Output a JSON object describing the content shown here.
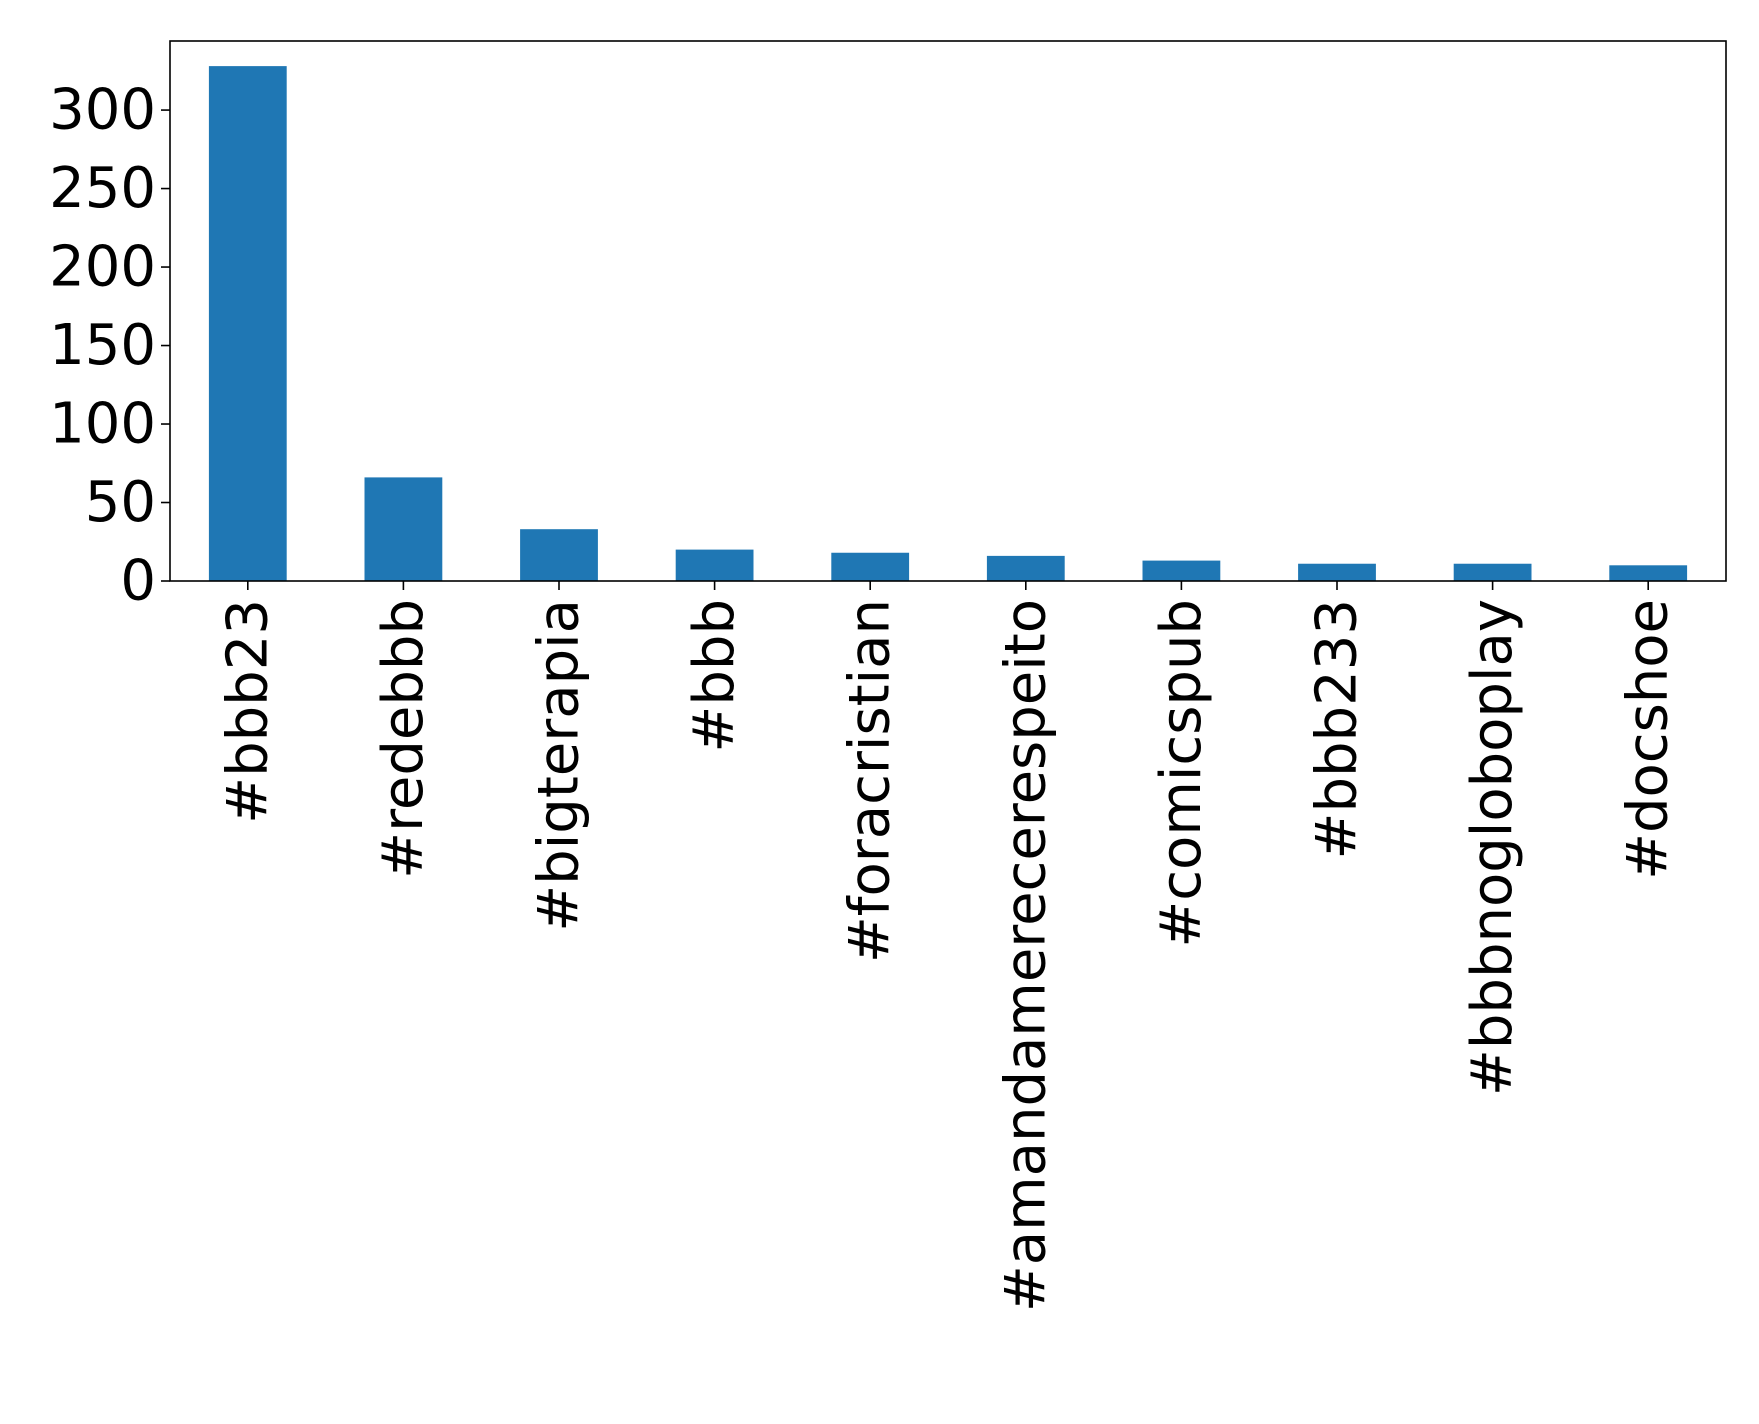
{
  "chart_data": {
    "type": "bar",
    "title": "",
    "xlabel": "",
    "ylabel": "",
    "categories": [
      "#bbb23",
      "#redebbb",
      "#bigterapia",
      "#bbb",
      "#foracristian",
      "#amandamerecerespeito",
      "#comicspub",
      "#bbb233",
      "#bbbnogloboplay",
      "#docshoe"
    ],
    "values": [
      328,
      66,
      33,
      20,
      18,
      16,
      13,
      11,
      11,
      10
    ],
    "yticks": [
      0,
      50,
      100,
      150,
      200,
      250,
      300
    ],
    "ylim": [
      0,
      344
    ],
    "grid": false,
    "bar_color": "#1f77b4"
  }
}
